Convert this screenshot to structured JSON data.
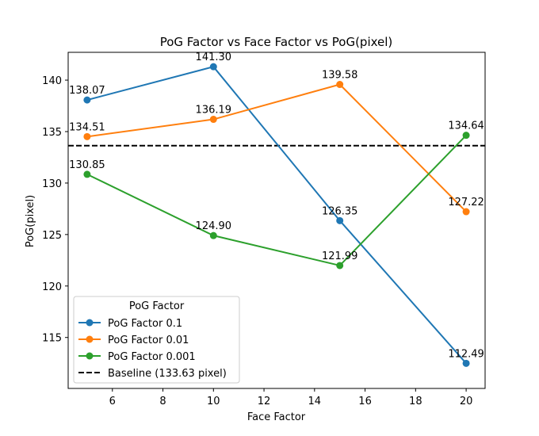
{
  "chart_data": {
    "type": "line",
    "title": "PoG Factor vs Face Factor vs PoG(pixel)",
    "xlabel": "Face Factor",
    "ylabel": "PoG(pixel)",
    "x": [
      5,
      10,
      15,
      20
    ],
    "xlim": [
      4.25,
      20.75
    ],
    "ylim": [
      110.05,
      142.7
    ],
    "xticks": [
      6,
      8,
      10,
      12,
      14,
      16,
      18,
      20
    ],
    "yticks": [
      115,
      120,
      125,
      130,
      135,
      140
    ],
    "grid": false,
    "series": [
      {
        "name": "PoG Factor 0.1",
        "color": "#1f77b4",
        "values": [
          138.07,
          141.3,
          126.35,
          112.49
        ],
        "labels": [
          "138.07",
          "141.30",
          "126.35",
          "112.49"
        ]
      },
      {
        "name": "PoG Factor 0.01",
        "color": "#ff7f0e",
        "values": [
          134.51,
          136.19,
          139.58,
          127.22
        ],
        "labels": [
          "134.51",
          "136.19",
          "139.58",
          "127.22"
        ]
      },
      {
        "name": "PoG Factor 0.001",
        "color": "#2ca02c",
        "values": [
          130.85,
          124.9,
          121.99,
          134.64
        ],
        "labels": [
          "130.85",
          "124.90",
          "121.99",
          "134.64"
        ]
      }
    ],
    "baseline": {
      "name": "Baseline (133.63 pixel)",
      "value": 133.63,
      "color": "#000000",
      "style": "dashed"
    },
    "legend": {
      "title": "PoG Factor",
      "placement": "lower-left"
    }
  }
}
